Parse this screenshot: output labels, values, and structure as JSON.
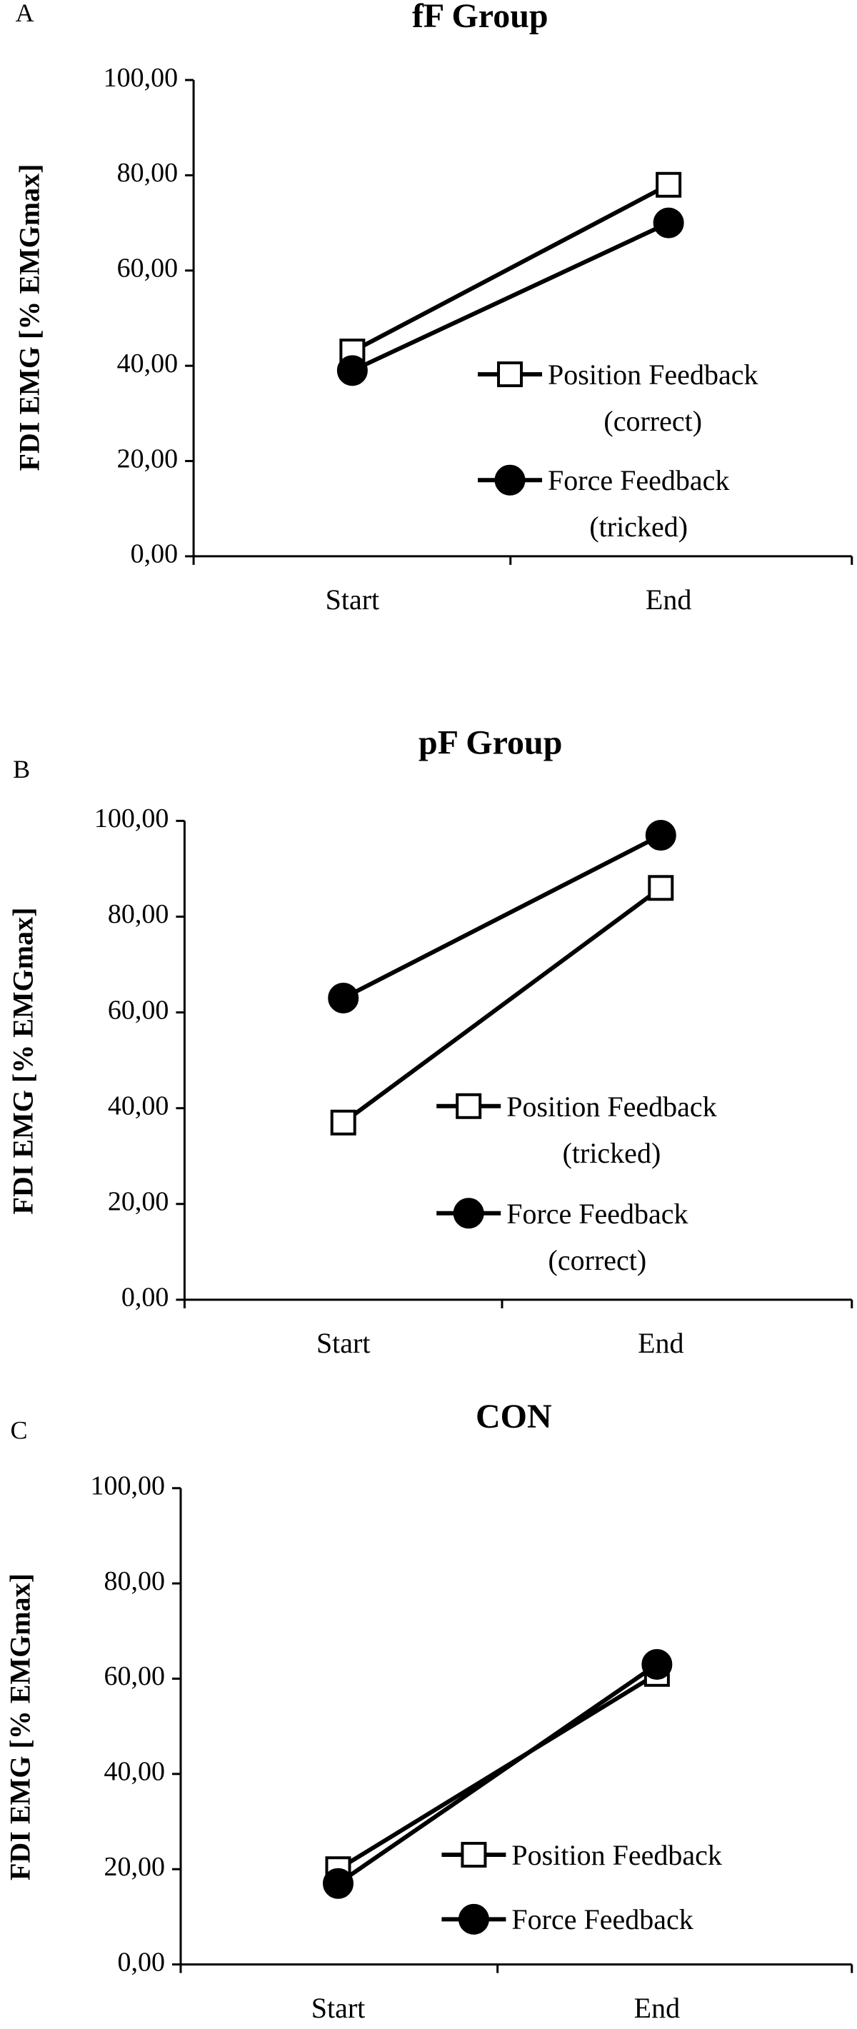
{
  "chart_data": [
    {
      "type": "line",
      "panel": "A",
      "title": "fF Group",
      "ylabel": "FDI EMG [% EMGmax]",
      "categories": [
        "Start",
        "End"
      ],
      "series": [
        {
          "name": "Position Feedback\n(correct)",
          "color": "#ffffff",
          "marker": "square",
          "values": [
            43,
            78
          ]
        },
        {
          "name": "Force Feedback\n(tricked)",
          "color": "#000000",
          "marker": "circle",
          "values": [
            39,
            70
          ]
        }
      ],
      "ylim": [
        0,
        100
      ],
      "yticks": [
        {
          "value": 0,
          "label": "0,00"
        },
        {
          "value": 20,
          "label": "20,00"
        },
        {
          "value": 40,
          "label": "40,00"
        },
        {
          "value": 60,
          "label": "60,00"
        },
        {
          "value": 80,
          "label": "80,00"
        },
        {
          "value": 100,
          "label": "100,00"
        }
      ]
    },
    {
      "type": "line",
      "panel": "B",
      "title": "pF Group",
      "ylabel": "FDI EMG [% EMGmax]",
      "categories": [
        "Start",
        "End"
      ],
      "series": [
        {
          "name": "Position Feedback\n(tricked)",
          "color": "#ffffff",
          "marker": "square",
          "values": [
            37,
            86
          ]
        },
        {
          "name": "Force Feedback\n(correct)",
          "color": "#000000",
          "marker": "circle",
          "values": [
            63,
            97
          ]
        }
      ],
      "ylim": [
        0,
        100
      ],
      "yticks": [
        {
          "value": 0,
          "label": "0,00"
        },
        {
          "value": 20,
          "label": "20,00"
        },
        {
          "value": 40,
          "label": "40,00"
        },
        {
          "value": 60,
          "label": "60,00"
        },
        {
          "value": 80,
          "label": "80,00"
        },
        {
          "value": 100,
          "label": "100,00"
        }
      ]
    },
    {
      "type": "line",
      "panel": "C",
      "title": "CON",
      "ylabel": "FDI EMG [% EMGmax]",
      "categories": [
        "Start",
        "End"
      ],
      "series": [
        {
          "name": "Position Feedback",
          "color": "#ffffff",
          "marker": "square",
          "values": [
            20,
            61
          ]
        },
        {
          "name": "Force Feedback",
          "color": "#000000",
          "marker": "circle",
          "values": [
            17,
            63
          ]
        }
      ],
      "ylim": [
        0,
        100
      ],
      "yticks": [
        {
          "value": 0,
          "label": "0,00"
        },
        {
          "value": 20,
          "label": "20,00"
        },
        {
          "value": 40,
          "label": "40,00"
        },
        {
          "value": 60,
          "label": "60,00"
        },
        {
          "value": 80,
          "label": "80,00"
        },
        {
          "value": 100,
          "label": "100,00"
        }
      ]
    }
  ]
}
